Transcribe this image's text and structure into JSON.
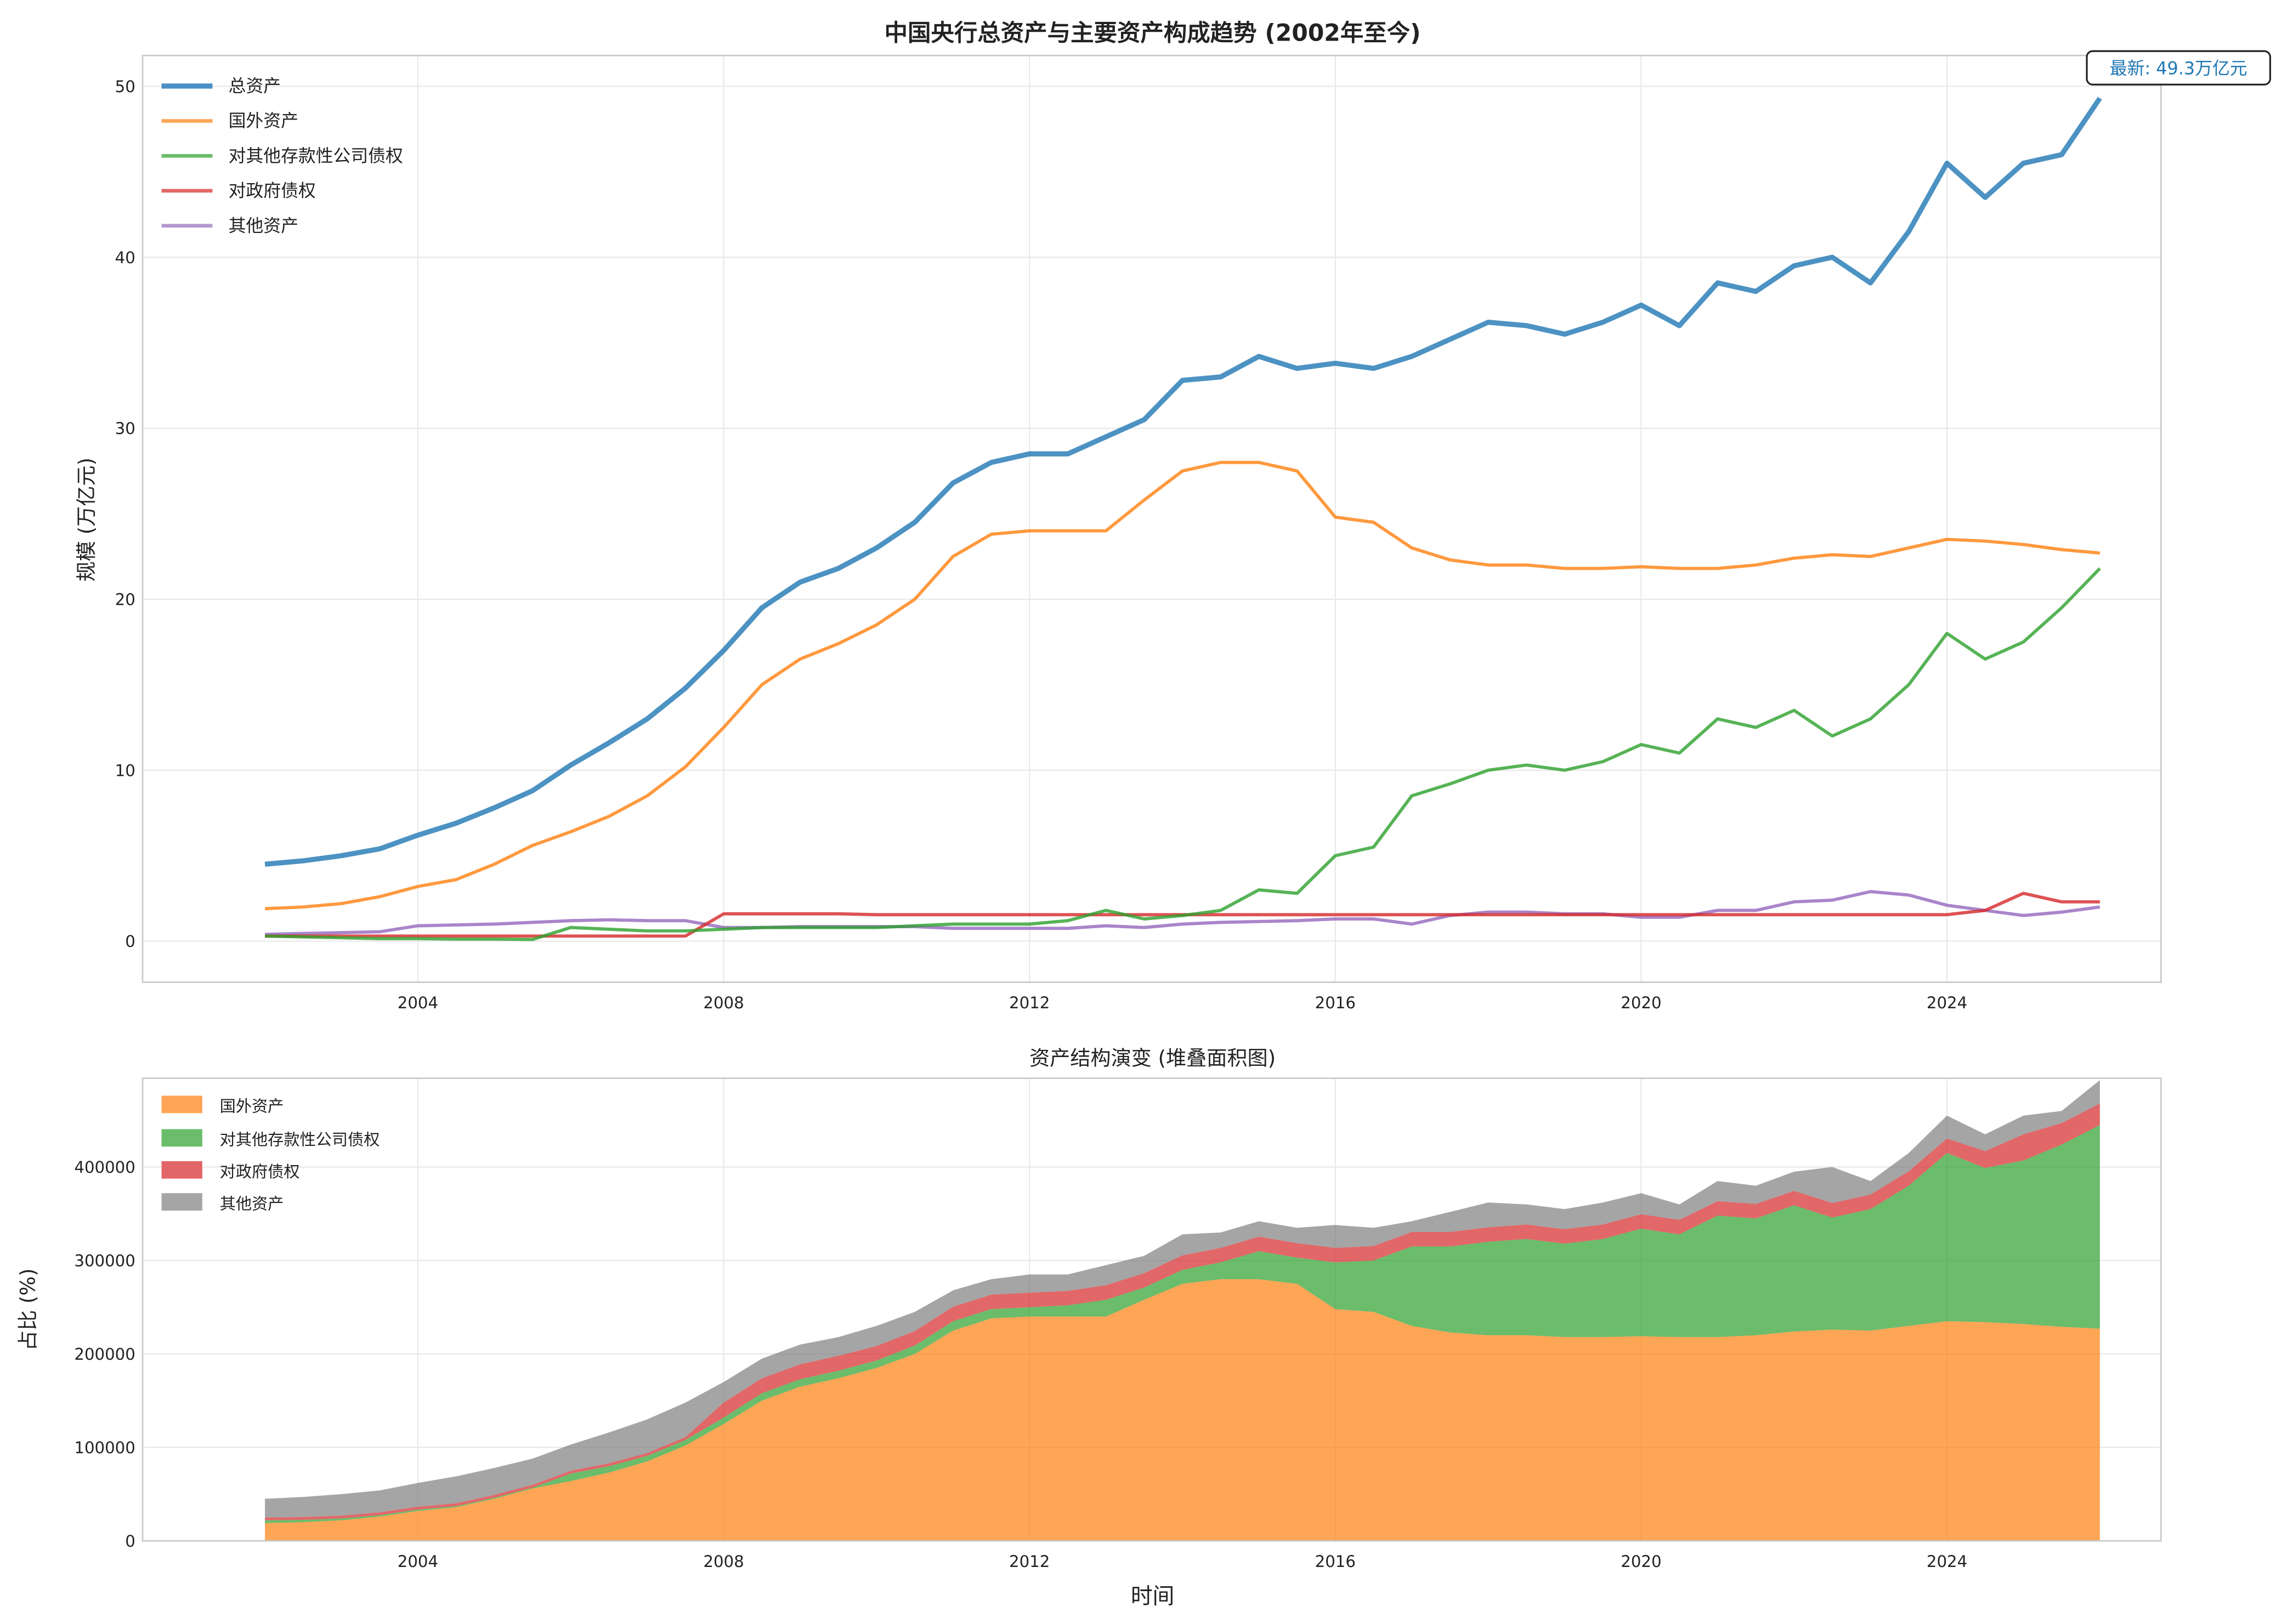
{
  "chart_data": [
    {
      "type": "line",
      "title": "中国央行总资产与主要资产构成趋势 (2002年至今)",
      "xlabel": "",
      "ylabel": "规模 (万亿元)",
      "xlim": [
        2000.4,
        2026.8
      ],
      "ylim": [
        -2.4,
        51.8
      ],
      "xticks": [
        "2004",
        "2008",
        "2012",
        "2016",
        "2020",
        "2024"
      ],
      "yticks": [
        "0",
        "10",
        "20",
        "30",
        "40",
        "50"
      ],
      "grid": true,
      "legend_position": "top-left",
      "annotation": "最新: 49.3万亿元",
      "x": [
        2002.0,
        2002.5,
        2003.0,
        2003.5,
        2004.0,
        2004.5,
        2005.0,
        2005.5,
        2006.0,
        2006.5,
        2007.0,
        2007.5,
        2008.0,
        2008.5,
        2009.0,
        2009.5,
        2010.0,
        2010.5,
        2011.0,
        2011.5,
        2012.0,
        2012.5,
        2013.0,
        2013.5,
        2014.0,
        2014.5,
        2015.0,
        2015.5,
        2016.0,
        2016.5,
        2017.0,
        2017.5,
        2018.0,
        2018.5,
        2019.0,
        2019.5,
        2020.0,
        2020.5,
        2021.0,
        2021.5,
        2022.0,
        2022.5,
        2023.0,
        2023.5,
        2024.0,
        2024.5,
        2025.0,
        2025.5,
        2026.0
      ],
      "series": [
        {
          "name": "总资产",
          "color": "#1f77b4",
          "values": [
            4.5,
            4.7,
            5.0,
            5.4,
            6.2,
            6.9,
            7.8,
            8.8,
            10.3,
            11.6,
            13.0,
            14.8,
            17.0,
            19.5,
            21.0,
            21.8,
            23.0,
            24.5,
            26.8,
            28.0,
            28.5,
            28.5,
            29.5,
            30.5,
            32.8,
            33.0,
            34.2,
            33.5,
            33.8,
            33.5,
            34.2,
            35.2,
            36.2,
            36.0,
            35.5,
            36.2,
            37.2,
            36.0,
            38.5,
            38.0,
            39.5,
            40.0,
            38.5,
            41.5,
            45.5,
            43.5,
            45.5,
            46.0,
            49.3
          ]
        },
        {
          "name": "国外资产",
          "color": "#ff7f0e",
          "values": [
            1.9,
            2.0,
            2.2,
            2.6,
            3.2,
            3.6,
            4.5,
            5.6,
            6.4,
            7.3,
            8.5,
            10.2,
            12.5,
            15.0,
            16.5,
            17.4,
            18.5,
            20.0,
            22.5,
            23.8,
            24.0,
            24.0,
            24.0,
            25.8,
            27.5,
            28.0,
            28.0,
            27.5,
            24.8,
            24.5,
            23.0,
            22.3,
            22.0,
            22.0,
            21.8,
            21.8,
            21.9,
            21.8,
            21.8,
            22.0,
            22.4,
            22.6,
            22.5,
            23.0,
            23.5,
            23.4,
            23.2,
            22.9,
            22.7
          ]
        },
        {
          "name": "对其他存款性公司债权",
          "color": "#2ca02c",
          "values": [
            0.3,
            0.25,
            0.2,
            0.15,
            0.15,
            0.12,
            0.12,
            0.1,
            0.8,
            0.7,
            0.6,
            0.6,
            0.7,
            0.8,
            0.8,
            0.8,
            0.8,
            0.9,
            1.0,
            1.0,
            1.0,
            1.2,
            1.8,
            1.3,
            1.5,
            1.8,
            3.0,
            2.8,
            5.0,
            5.5,
            8.5,
            9.2,
            10.0,
            10.3,
            10.0,
            10.5,
            11.5,
            11.0,
            13.0,
            12.5,
            13.5,
            12.0,
            13.0,
            15.0,
            18.0,
            16.5,
            17.5,
            19.5,
            21.8
          ]
        },
        {
          "name": "对政府债权",
          "color": "#d62728",
          "values": [
            0.3,
            0.3,
            0.3,
            0.3,
            0.3,
            0.3,
            0.3,
            0.3,
            0.3,
            0.3,
            0.3,
            0.3,
            1.6,
            1.6,
            1.6,
            1.6,
            1.55,
            1.55,
            1.55,
            1.55,
            1.55,
            1.55,
            1.55,
            1.55,
            1.55,
            1.55,
            1.55,
            1.55,
            1.55,
            1.55,
            1.55,
            1.55,
            1.55,
            1.55,
            1.55,
            1.55,
            1.55,
            1.55,
            1.55,
            1.55,
            1.55,
            1.55,
            1.55,
            1.55,
            1.55,
            1.8,
            2.8,
            2.3,
            2.3
          ]
        },
        {
          "name": "其他资产",
          "color": "#9467bd",
          "values": [
            0.4,
            0.45,
            0.5,
            0.55,
            0.9,
            0.95,
            1.0,
            1.1,
            1.2,
            1.25,
            1.2,
            1.2,
            0.8,
            0.8,
            0.85,
            0.85,
            0.85,
            0.85,
            0.75,
            0.75,
            0.75,
            0.75,
            0.9,
            0.8,
            1.0,
            1.1,
            1.15,
            1.2,
            1.3,
            1.3,
            1.0,
            1.5,
            1.7,
            1.7,
            1.6,
            1.6,
            1.4,
            1.4,
            1.8,
            1.8,
            2.3,
            2.4,
            2.9,
            2.7,
            2.1,
            1.8,
            1.5,
            1.7,
            2.0
          ]
        }
      ]
    },
    {
      "type": "area",
      "title": "资产结构演变 (堆叠面积图)",
      "xlabel": "时间",
      "ylabel": "占比 (%)",
      "stacked": true,
      "unit_multiplier": 10000,
      "note": "stack = 国外资产, 对其他存款性公司债权, 对政府债权, 其他资产 (top equals 总资产 × 10000)",
      "xlim": [
        2000.4,
        2026.8
      ],
      "ylim": [
        0,
        495000
      ],
      "xticks": [
        "2004",
        "2008",
        "2012",
        "2016",
        "2020",
        "2024"
      ],
      "yticks": [
        "0",
        "100000",
        "200000",
        "300000",
        "400000"
      ],
      "grid": true,
      "legend_position": "top-left",
      "legend": [
        {
          "name": "国外资产",
          "color": "#ff7f0e"
        },
        {
          "name": "对其他存款性公司债权",
          "color": "#2ca02c"
        },
        {
          "name": "对政府债权",
          "color": "#d62728"
        },
        {
          "name": "其他资产",
          "color": "#7f7f7f"
        }
      ]
    }
  ]
}
